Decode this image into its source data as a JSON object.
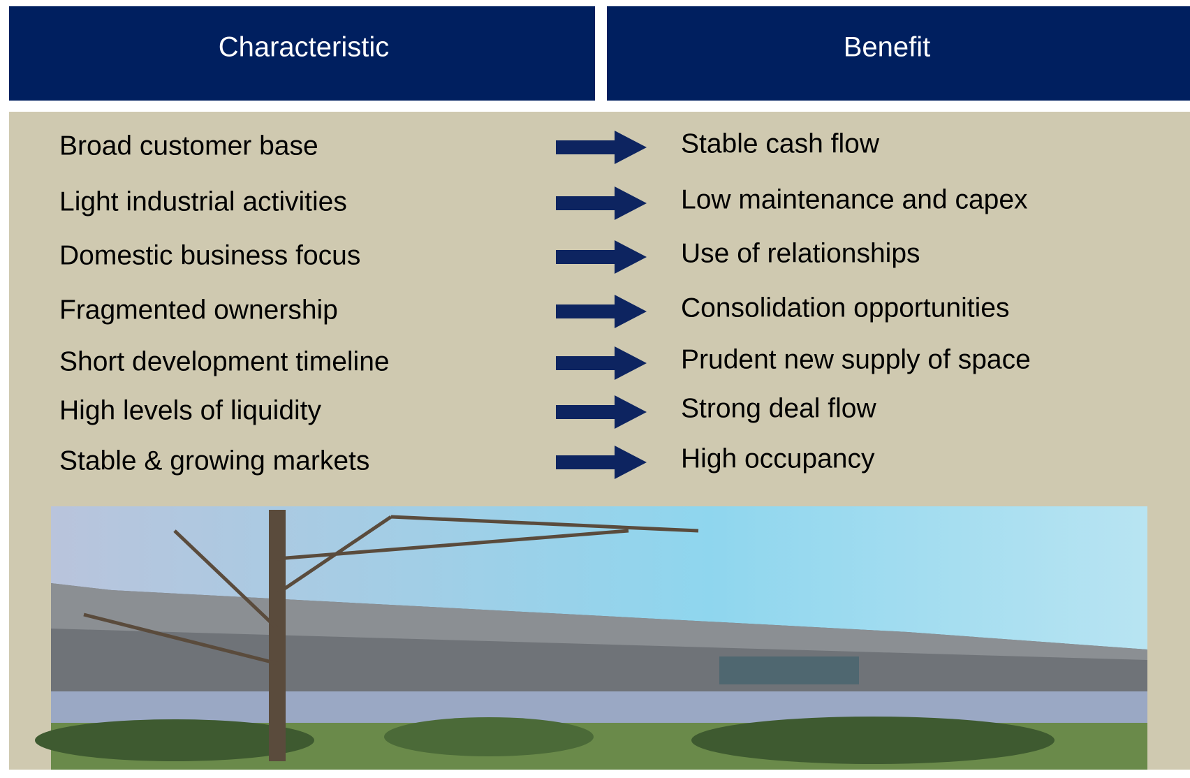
{
  "header": {
    "characteristic": "Characteristic",
    "benefit": "Benefit"
  },
  "rows": [
    {
      "characteristic": "Broad customer base",
      "benefit": "Stable cash flow"
    },
    {
      "characteristic": "Light industrial activities",
      "benefit": "Low maintenance and capex"
    },
    {
      "characteristic": "Domestic business focus",
      "benefit": "Use of relationships"
    },
    {
      "characteristic": "Fragmented ownership",
      "benefit": "Consolidation opportunities"
    },
    {
      "characteristic": "Short development timeline",
      "benefit": "Prudent new supply of space"
    },
    {
      "characteristic": "High levels of liquidity",
      "benefit": "Strong deal flow"
    },
    {
      "characteristic": "Stable & growing markets",
      "benefit": "High occupancy"
    }
  ]
}
